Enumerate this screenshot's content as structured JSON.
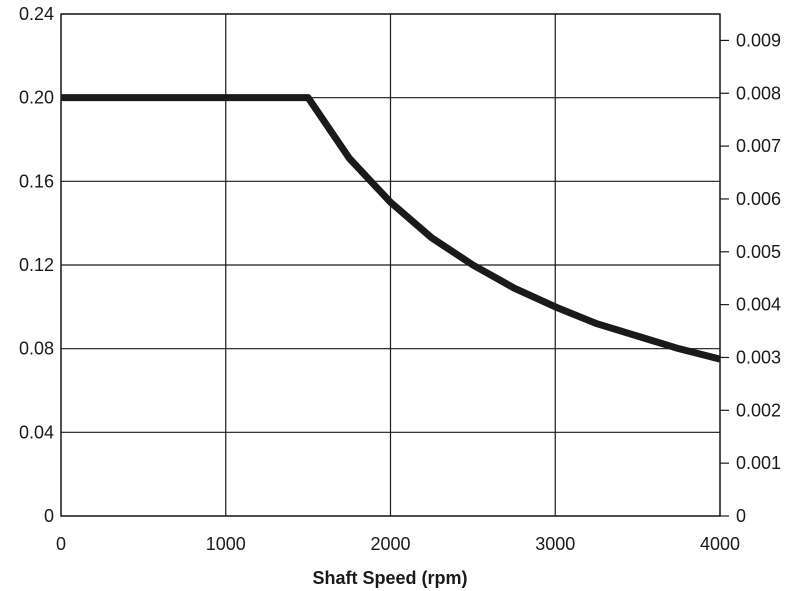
{
  "chart_data": {
    "type": "line",
    "title": "",
    "xlabel": "Shaft Speed (rpm)",
    "ylabel": "",
    "xlim": [
      0,
      4000
    ],
    "ylim": [
      0,
      0.24
    ],
    "y2lim": [
      0,
      0.0095
    ],
    "grid": true,
    "x_ticks": [
      0,
      1000,
      2000,
      3000,
      4000
    ],
    "x_tick_labels": [
      "0",
      "1000",
      "2000",
      "3000",
      "4000"
    ],
    "y_ticks": [
      0,
      0.04,
      0.08,
      0.12,
      0.16,
      0.2,
      0.24
    ],
    "y_tick_labels": [
      "0",
      "0.04",
      "0.08",
      "0.12",
      "0.16",
      "0.20",
      "0.24"
    ],
    "y2_ticks": [
      0,
      0.001,
      0.002,
      0.003,
      0.004,
      0.005,
      0.006,
      0.007,
      0.008,
      0.009
    ],
    "y2_tick_labels": [
      "0",
      "0.001",
      "0.002",
      "0.003",
      "0.004",
      "0.005",
      "0.006",
      "0.007",
      "0.008",
      "0.009"
    ],
    "series": [
      {
        "color": "#1a1a1a",
        "x": [
          0,
          500,
          1000,
          1500,
          1750,
          2000,
          2250,
          2500,
          2750,
          3000,
          3250,
          3500,
          3750,
          4000
        ],
        "y": [
          0.2,
          0.2,
          0.2,
          0.2,
          0.171,
          0.15,
          0.133,
          0.12,
          0.109,
          0.1,
          0.092,
          0.086,
          0.08,
          0.075
        ]
      }
    ]
  }
}
